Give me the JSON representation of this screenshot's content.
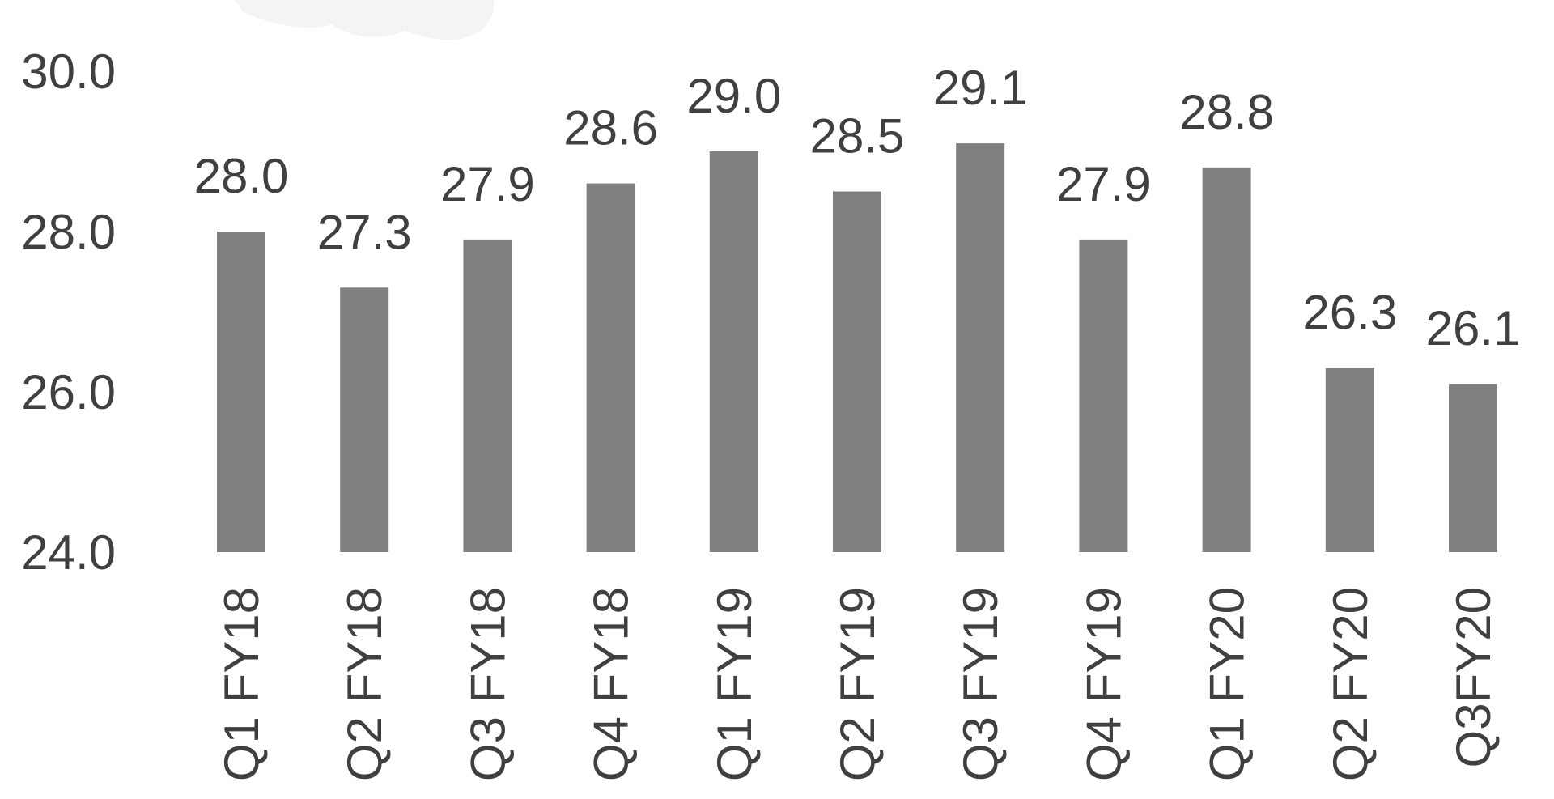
{
  "chart_data": {
    "type": "bar",
    "title": "",
    "xlabel": "",
    "ylabel": "",
    "ylim": [
      24.0,
      30.0
    ],
    "yticks": [
      "24.0",
      "26.0",
      "28.0",
      "30.0"
    ],
    "grid": false,
    "legend": "none",
    "bar_color": "#808080",
    "text_color": "#404040",
    "categories": [
      "Q1 FY18",
      "Q2 FY18",
      "Q3 FY18",
      "Q4 FY18",
      "Q1 FY19",
      "Q2 FY19",
      "Q3 FY19",
      "Q4 FY19",
      "Q1 FY20",
      "Q2 FY20",
      "Q3FY20"
    ],
    "values": [
      28.0,
      27.3,
      27.9,
      28.6,
      29.0,
      28.5,
      29.1,
      27.9,
      28.8,
      26.3,
      26.1
    ],
    "value_labels": [
      "28.0",
      "27.3",
      "27.9",
      "28.6",
      "29.0",
      "28.5",
      "29.1",
      "27.9",
      "28.8",
      "26.3",
      "26.1"
    ]
  }
}
